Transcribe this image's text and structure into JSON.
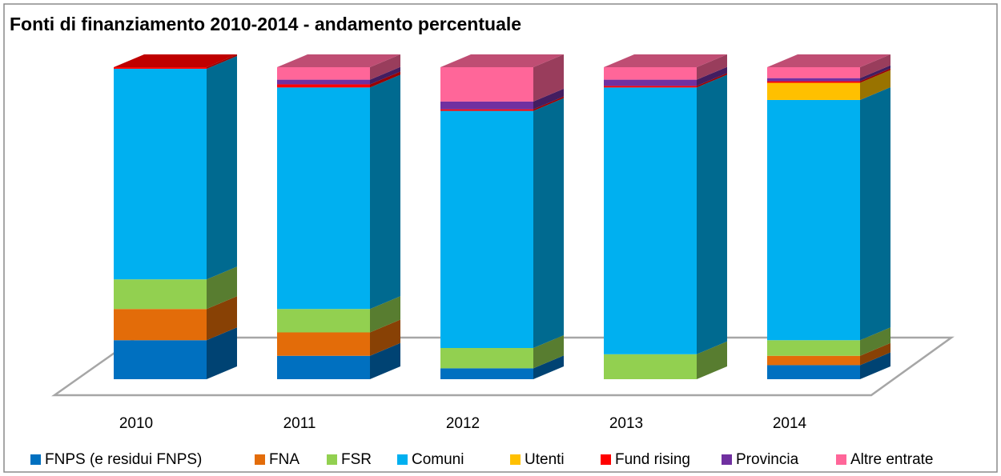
{
  "chart_data": {
    "type": "bar3d_stacked",
    "title": "Fonti di finanziamento 2010-2014 - andamento percentuale",
    "categories": [
      "2010",
      "2011",
      "2012",
      "2013",
      "2014"
    ],
    "series": [
      {
        "name": "FNPS (e residui FNPS)",
        "color": "#0070c0",
        "values": [
          12.5,
          7.5,
          3.5,
          0,
          4.5
        ]
      },
      {
        "name": "FNA",
        "color": "#e36c09",
        "values": [
          10,
          7.5,
          0,
          0,
          3
        ]
      },
      {
        "name": "FSR",
        "color": "#92d050",
        "values": [
          9.5,
          7.5,
          6.5,
          8,
          5
        ]
      },
      {
        "name": "Comuni",
        "color": "#00b0f0",
        "values": [
          67.5,
          71,
          76,
          85.5,
          77
        ]
      },
      {
        "name": "Utenti",
        "color": "#ffc000",
        "values": [
          0,
          0,
          0,
          0,
          5.5
        ]
      },
      {
        "name": "Fund rising",
        "color": "#ff0000",
        "values": [
          0.5,
          1,
          0.5,
          0.5,
          0.5
        ]
      },
      {
        "name": "Provincia",
        "color": "#7030a0",
        "values": [
          0,
          1.5,
          2.5,
          2,
          1
        ]
      },
      {
        "name": "Altre entrate",
        "color": "#ff6699",
        "values": [
          0,
          4,
          11,
          4,
          3.5
        ]
      }
    ],
    "legend": "bottom"
  }
}
